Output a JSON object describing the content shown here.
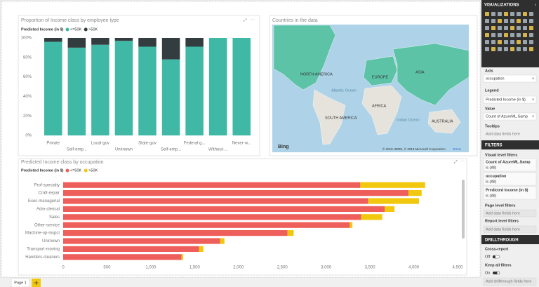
{
  "chart_data": [
    {
      "type": "bar",
      "orientation": "vertical",
      "stacked": true,
      "title": "Proportion of Income class by employee type",
      "legend_title": "Predicted Income (in $)",
      "categories": [
        "Private",
        "Self-emp...",
        "Local-gov",
        "Unknown",
        "State-gov",
        "Self-emp...",
        "Federal-g...",
        "Without-...",
        "Never-w..."
      ],
      "series": [
        {
          "name": "<=50K",
          "color": "#3fb8a5",
          "values": [
            96,
            90,
            93,
            97,
            91,
            78,
            91,
            100,
            100
          ]
        },
        {
          "name": ">50K",
          "color": "#333d3f",
          "values": [
            4,
            10,
            7,
            3,
            9,
            22,
            9,
            0,
            0
          ]
        }
      ],
      "ylim": [
        0,
        100
      ],
      "yticks": [
        {
          "value": 0,
          "label": "0%"
        },
        {
          "value": 20,
          "label": "20%"
        },
        {
          "value": 40,
          "label": "40%"
        },
        {
          "value": 60,
          "label": "60%"
        },
        {
          "value": 80,
          "label": "80%"
        },
        {
          "value": 100,
          "label": "100%"
        }
      ],
      "grid": false
    },
    {
      "type": "bar",
      "orientation": "horizontal",
      "stacked": true,
      "title": "Predicted Income class by occupation",
      "legend_title": "Predicted Income (in $)",
      "categories": [
        "Prof-specialty",
        "Craft-repair",
        "Exec-managerial",
        "Adm-clerical",
        "Sales",
        "Other-service",
        "Machine-op-inspct",
        "Unknown",
        "Transport-moving",
        "Handlers-cleaners"
      ],
      "series": [
        {
          "name": "<=50K",
          "color": "#ee5f5b",
          "values": [
            3390,
            3940,
            3480,
            3670,
            3400,
            3270,
            2560,
            1790,
            1550,
            1350
          ]
        },
        {
          "name": ">50K",
          "color": "#f2c80f",
          "values": [
            740,
            150,
            580,
            110,
            240,
            30,
            70,
            50,
            50,
            20
          ]
        }
      ],
      "xlim": [
        0,
        4500
      ],
      "xticks": [
        0,
        500,
        {
          "value": 1000,
          "label": "1,000"
        },
        {
          "value": 1500,
          "label": "1,500"
        },
        {
          "value": 2000,
          "label": "2,000"
        },
        {
          "value": 2500,
          "label": "2,500"
        },
        {
          "value": 3000,
          "label": "3,000"
        },
        {
          "value": 3500,
          "label": "3,500"
        },
        {
          "value": 4000,
          "label": "4,000"
        },
        {
          "value": 4500,
          "label": "4,500"
        }
      ],
      "grid": false
    }
  ],
  "map": {
    "title": "Countries in the data",
    "labels": [
      "NORTH AMERICA",
      "EUROPE",
      "ASIA",
      "AFRICA",
      "SOUTH AMERICA",
      "AUSTRALIA"
    ],
    "oceans": [
      "Atlantic Ocean",
      "Indian Ocean"
    ],
    "logo": "Bing",
    "attribution": "© 2019 HERE, © 2019 Microsoft Corporation",
    "terms": "Terms"
  },
  "pane": {
    "title": "VISUALIZATIONS",
    "wells": [
      {
        "label": "Axis",
        "field": "occupation"
      },
      {
        "label": "Legend",
        "field": "Predicted Income (in $)"
      },
      {
        "label": "Value",
        "field": "Count of AzureML.Samp"
      },
      {
        "label": "Tooltips",
        "field": "Add data fields here"
      }
    ],
    "filters": {
      "title": "FILTERS",
      "visual": "Visual level filters",
      "cards": [
        {
          "name": "Count of AzureML.Samp",
          "state": "is (All)"
        },
        {
          "name": "occupation",
          "state": "is (All)"
        },
        {
          "name": "Predicted Income (in $)",
          "state": "is (All)"
        }
      ],
      "page": "Page level filters",
      "page_add": "Add data fields here",
      "report": "Report level filters",
      "report_add": "Add data fields here"
    },
    "drillthrough": {
      "title": "DRILLTHROUGH",
      "cross": "Cross-report",
      "cross_state": "Off",
      "keep": "Keep all filters",
      "keep_state": "On",
      "add": "Add drillthrough fields here"
    }
  },
  "tabs": {
    "page": "Page 1"
  }
}
